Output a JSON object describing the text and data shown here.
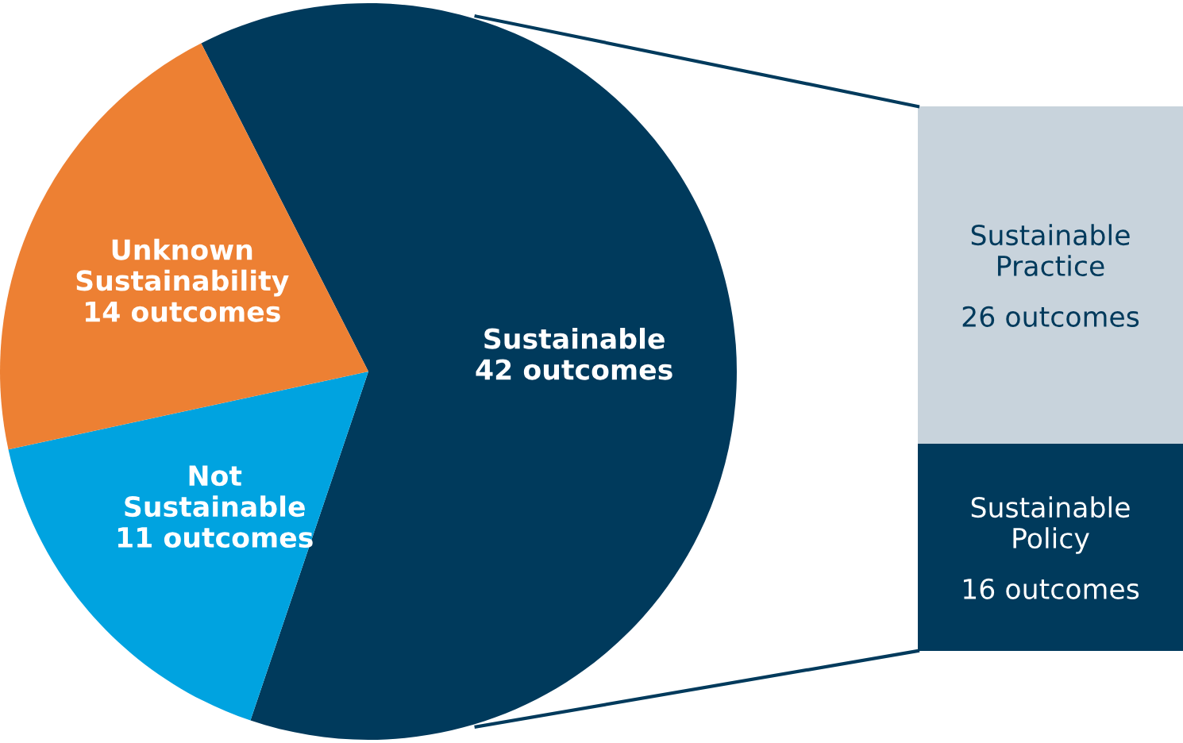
{
  "chart_data": [
    {
      "type": "pie",
      "categories": [
        "Sustainable",
        "Not\nSustainable",
        "Unknown\nSustainability"
      ],
      "values": [
        42,
        11,
        14
      ],
      "colors": [
        "#003a5c",
        "#00a3e0",
        "#ed8033"
      ],
      "value_labels": [
        "42 outcomes",
        "11 outcomes",
        "14 outcomes"
      ]
    },
    {
      "type": "bar",
      "stacked": true,
      "categories": [
        null
      ],
      "series": [
        {
          "name": "Sustainable\nPolicy",
          "color": "#003a5c",
          "values": [
            16
          ],
          "value_labels": [
            "16 outcomes"
          ]
        },
        {
          "name": "Sustainable\nPractice",
          "color": "#c8d3dc",
          "values": [
            26
          ],
          "value_labels": [
            "26 outcomes"
          ]
        }
      ]
    }
  ]
}
